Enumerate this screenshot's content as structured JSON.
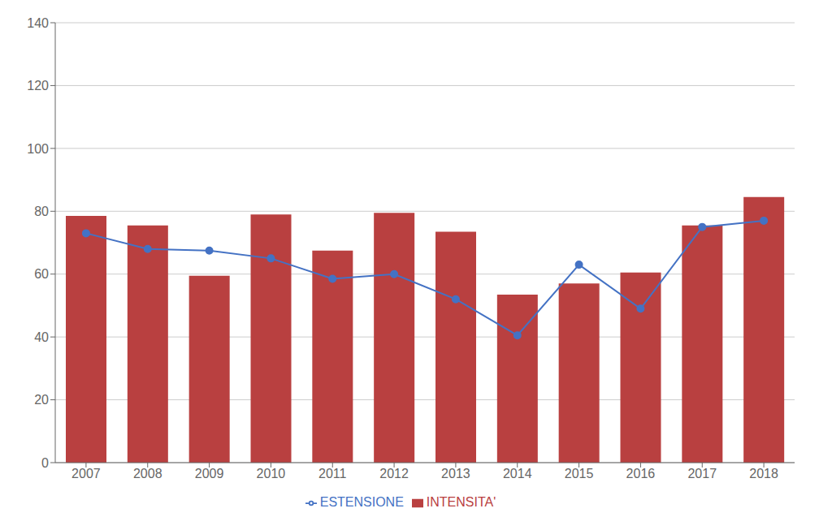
{
  "chart_data": {
    "type": "bar",
    "categories": [
      "2007",
      "2008",
      "2009",
      "2010",
      "2011",
      "2012",
      "2013",
      "2014",
      "2015",
      "2016",
      "2017",
      "2018"
    ],
    "series": [
      {
        "name": "INTENSITA'",
        "type": "bar",
        "color": "#b94040",
        "values": [
          78.5,
          75.5,
          59.5,
          79.0,
          67.5,
          79.5,
          73.5,
          53.5,
          57.0,
          60.5,
          75.5,
          84.5
        ]
      },
      {
        "name": "ESTENSIONE",
        "type": "line",
        "color": "#4472c4",
        "marker": "circle",
        "values": [
          73.0,
          68.0,
          67.5,
          65.0,
          58.5,
          60.0,
          52.0,
          40.5,
          63.0,
          49.0,
          75.0,
          77.0
        ]
      }
    ],
    "ylim": [
      0,
      140
    ],
    "yticks": [
      0,
      20,
      40,
      60,
      80,
      100,
      120,
      140
    ],
    "grid": true,
    "legend": "bottom"
  }
}
